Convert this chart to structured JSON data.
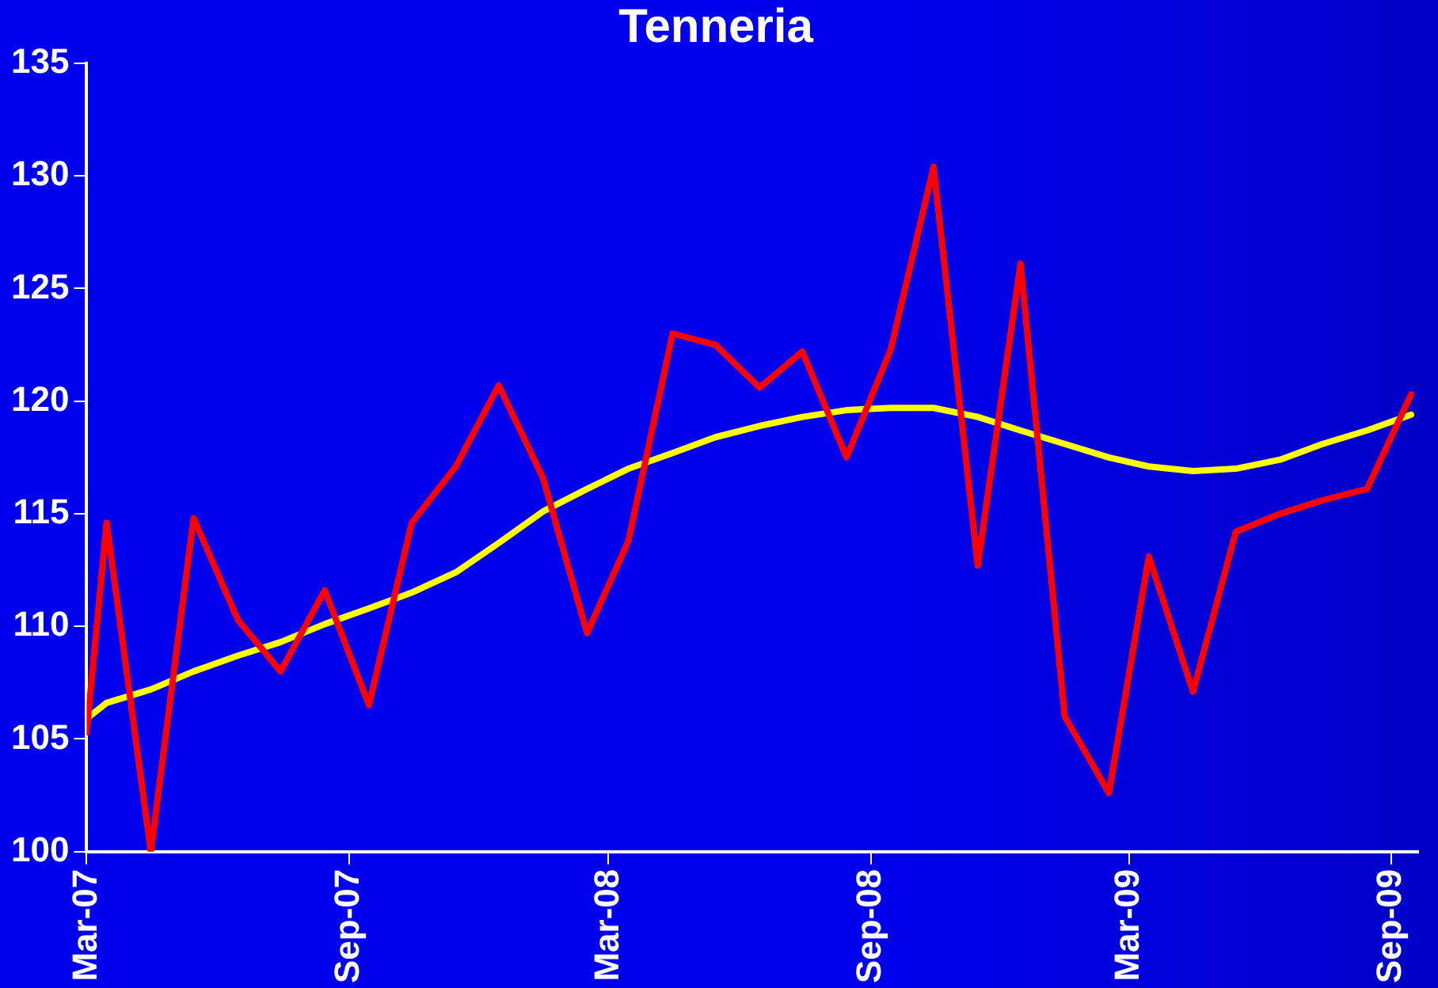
{
  "chart_data": {
    "type": "line",
    "title": "Tenneria",
    "x": [
      "2007-03-01",
      "2007-03-15",
      "2007-04-15",
      "2007-05-15",
      "2007-06-15",
      "2007-07-15",
      "2007-08-15",
      "2007-09-15",
      "2007-10-15",
      "2007-11-15",
      "2007-12-15",
      "2008-01-15",
      "2008-02-15",
      "2008-03-15",
      "2008-04-15",
      "2008-05-15",
      "2008-06-15",
      "2008-07-15",
      "2008-08-15",
      "2008-09-15",
      "2008-10-15",
      "2008-11-15",
      "2008-12-15",
      "2009-01-15",
      "2009-02-15",
      "2009-03-15",
      "2009-04-15",
      "2009-05-15",
      "2009-06-15",
      "2009-07-15",
      "2009-08-15",
      "2009-09-15"
    ],
    "series": [
      {
        "color": "#ff0000",
        "values": [
          105.3,
          114.6,
          100,
          114.8,
          110.3,
          108.0,
          111.6,
          106.5,
          114.6,
          117.1,
          120.7,
          116.6,
          109.7,
          113.8,
          123.0,
          122.5,
          120.6,
          122.2,
          117.5,
          122.3,
          130.4,
          112.7,
          126.1,
          106.0,
          102.6,
          113.1,
          107.1,
          114.2,
          115.0,
          115.6,
          116.1,
          120.3
        ]
      },
      {
        "color": "#ffff00",
        "values": [
          105.9,
          106.6,
          107.2,
          108.0,
          108.7,
          109.3,
          110.1,
          110.8,
          111.5,
          112.4,
          113.7,
          115.1,
          116.1,
          117.0,
          117.7,
          118.4,
          118.9,
          119.3,
          119.6,
          119.7,
          119.7,
          119.3,
          118.7,
          118.1,
          117.5,
          117.1,
          116.9,
          117.0,
          117.4,
          118.1,
          118.7,
          119.4
        ]
      }
    ],
    "xlim": [
      "2007-03-01",
      "2009-09-20"
    ],
    "xticks": [
      {
        "value": "2007-03-01",
        "label": "Mar-07"
      },
      {
        "value": "2007-09-01",
        "label": "Sep-07"
      },
      {
        "value": "2008-03-01",
        "label": "Mar-08"
      },
      {
        "value": "2008-09-01",
        "label": "Sep-08"
      },
      {
        "value": "2009-03-01",
        "label": "Mar-09"
      },
      {
        "value": "2009-09-01",
        "label": "Sep-09"
      }
    ],
    "ylim": [
      100,
      135
    ],
    "yticks": [
      100,
      105,
      110,
      115,
      120,
      125,
      130,
      135
    ],
    "marker": "none",
    "line_style": "solid",
    "grid": false,
    "legend": false
  }
}
